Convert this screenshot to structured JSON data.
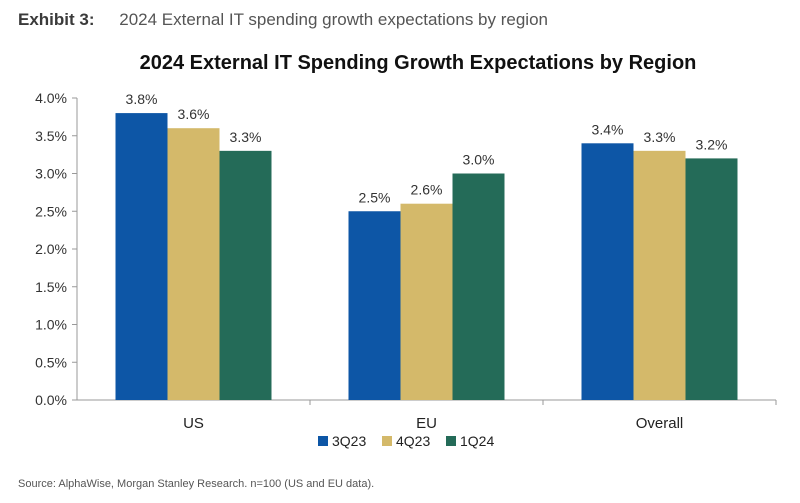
{
  "header": {
    "exhibit_label": "Exhibit 3:",
    "subtitle": "2024 External IT spending growth expectations by region"
  },
  "footer": {
    "source": "Source: AlphaWise, Morgan Stanley Research. n=100 (US and EU data)."
  },
  "colors": {
    "3Q23": "#0d56a6",
    "4Q23": "#d4b96a",
    "1Q24": "#246b58",
    "axis": "#999999"
  },
  "chart_data": {
    "type": "bar",
    "title": "2024 External IT Spending Growth Expectations by Region",
    "categories": [
      "US",
      "EU",
      "Overall"
    ],
    "series": [
      {
        "name": "3Q23",
        "values": [
          3.8,
          2.5,
          3.4
        ],
        "labels": [
          "3.8%",
          "2.5%",
          "3.4%"
        ]
      },
      {
        "name": "4Q23",
        "values": [
          3.6,
          2.6,
          3.3
        ],
        "labels": [
          "3.6%",
          "2.6%",
          "3.3%"
        ]
      },
      {
        "name": "1Q24",
        "values": [
          3.3,
          3.0,
          3.2
        ],
        "labels": [
          "3.3%",
          "3.0%",
          "3.2%"
        ]
      }
    ],
    "ylim": [
      0,
      4.0
    ],
    "yticks": [
      "0.0%",
      "0.5%",
      "1.0%",
      "1.5%",
      "2.0%",
      "2.5%",
      "3.0%",
      "3.5%",
      "4.0%"
    ],
    "xlabel": "",
    "ylabel": "",
    "grid": false,
    "legend_position": "bottom"
  }
}
